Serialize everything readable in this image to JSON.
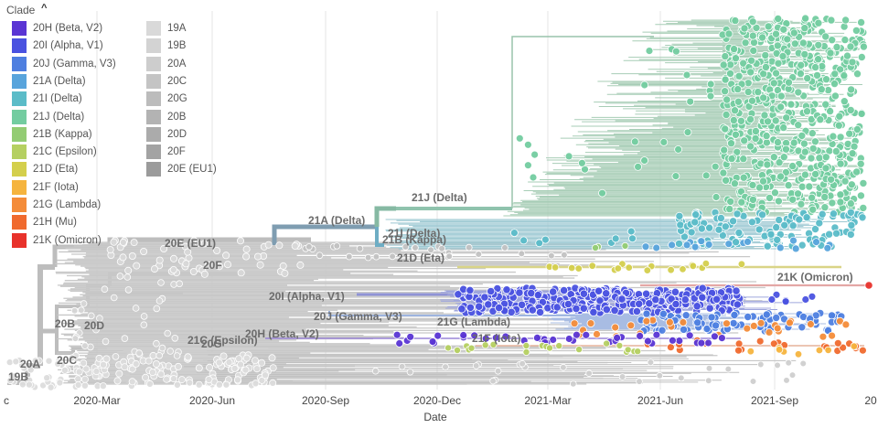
{
  "legend": {
    "title": "Clade",
    "items": [
      {
        "label": "20H (Beta, V2)",
        "color": "#5a35d4"
      },
      {
        "label": "20I (Alpha, V1)",
        "color": "#4a52e0"
      },
      {
        "label": "20J (Gamma, V3)",
        "color": "#4e7fe0"
      },
      {
        "label": "21A (Delta)",
        "color": "#58a4dc"
      },
      {
        "label": "21I (Delta)",
        "color": "#5bbcc8"
      },
      {
        "label": "21J (Delta)",
        "color": "#73cca0"
      },
      {
        "label": "21B (Kappa)",
        "color": "#93cc73"
      },
      {
        "label": "21C (Epsilon)",
        "color": "#b5d061"
      },
      {
        "label": "21D (Eta)",
        "color": "#d4cf4c"
      },
      {
        "label": "21F (Iota)",
        "color": "#f5b43e"
      },
      {
        "label": "21G (Lambda)",
        "color": "#f48c39"
      },
      {
        "label": "21H (Mu)",
        "color": "#f06a2e"
      },
      {
        "label": "21K (Omicron)",
        "color": "#e8322b"
      },
      {
        "label": "19A",
        "color": "#d9d9d9"
      },
      {
        "label": "19B",
        "color": "#d3d3d3"
      },
      {
        "label": "20A",
        "color": "#cdcdcd"
      },
      {
        "label": "20C",
        "color": "#c4c4c4"
      },
      {
        "label": "20G",
        "color": "#bcbcbc"
      },
      {
        "label": "20B",
        "color": "#b3b3b3"
      },
      {
        "label": "20D",
        "color": "#ababab"
      },
      {
        "label": "20F",
        "color": "#a3a3a3"
      },
      {
        "label": "20E (EU1)",
        "color": "#9b9b9b"
      }
    ]
  },
  "chart_data": {
    "type": "scatter",
    "description_type": "phylogenetic tree (time-scaled)",
    "xlabel": "Date",
    "x_ticks": [
      "c",
      "2020-Mar",
      "2020-Jun",
      "2020-Sep",
      "2020-Dec",
      "2021-Mar",
      "2021-Jun",
      "2021-Sep",
      "20"
    ],
    "grid": true,
    "branch_labels": [
      {
        "label": "19B"
      },
      {
        "label": "20A"
      },
      {
        "label": "20C"
      },
      {
        "label": "20B"
      },
      {
        "label": "20D"
      },
      {
        "label": "20G"
      },
      {
        "label": "20E (EU1)"
      },
      {
        "label": "20F"
      },
      {
        "label": "21A (Delta)"
      },
      {
        "label": "21J (Delta)"
      },
      {
        "label": "21I (Delta)"
      },
      {
        "label": "21B (Kappa)"
      },
      {
        "label": "21D (Eta)"
      },
      {
        "label": "20I (Alpha, V1)"
      },
      {
        "label": "20J (Gamma, V3)"
      },
      {
        "label": "21G (Lambda)"
      },
      {
        "label": "20H (Beta, V2)"
      },
      {
        "label": "21C (Epsilon)"
      },
      {
        "label": "21K (Omicron)"
      },
      {
        "label": "21F (Iota)"
      }
    ]
  }
}
